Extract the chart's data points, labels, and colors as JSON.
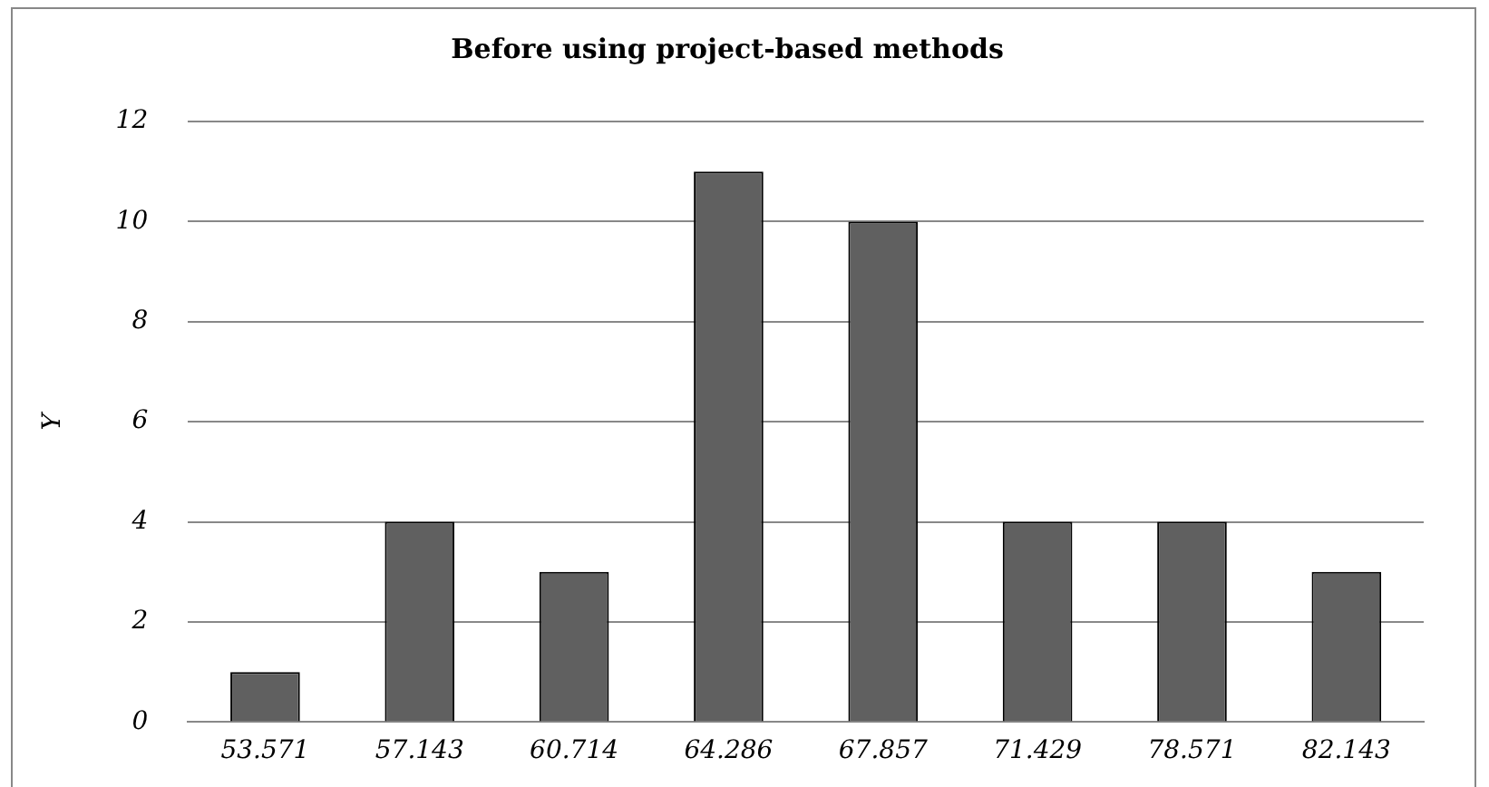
{
  "chart_data": {
    "type": "bar",
    "title": "Before using project-based methods",
    "ylabel": "Y",
    "categories": [
      "53.571",
      "57.143",
      "60.714",
      "64.286",
      "67.857",
      "71.429",
      "78.571",
      "82.143"
    ],
    "values": [
      1,
      4,
      3,
      11,
      10,
      4,
      4,
      3
    ],
    "color": "#606060",
    "ylim": [
      0,
      12
    ],
    "yticks": [
      0,
      2,
      4,
      6,
      8,
      10,
      12
    ],
    "grid": "y",
    "legend": false
  }
}
